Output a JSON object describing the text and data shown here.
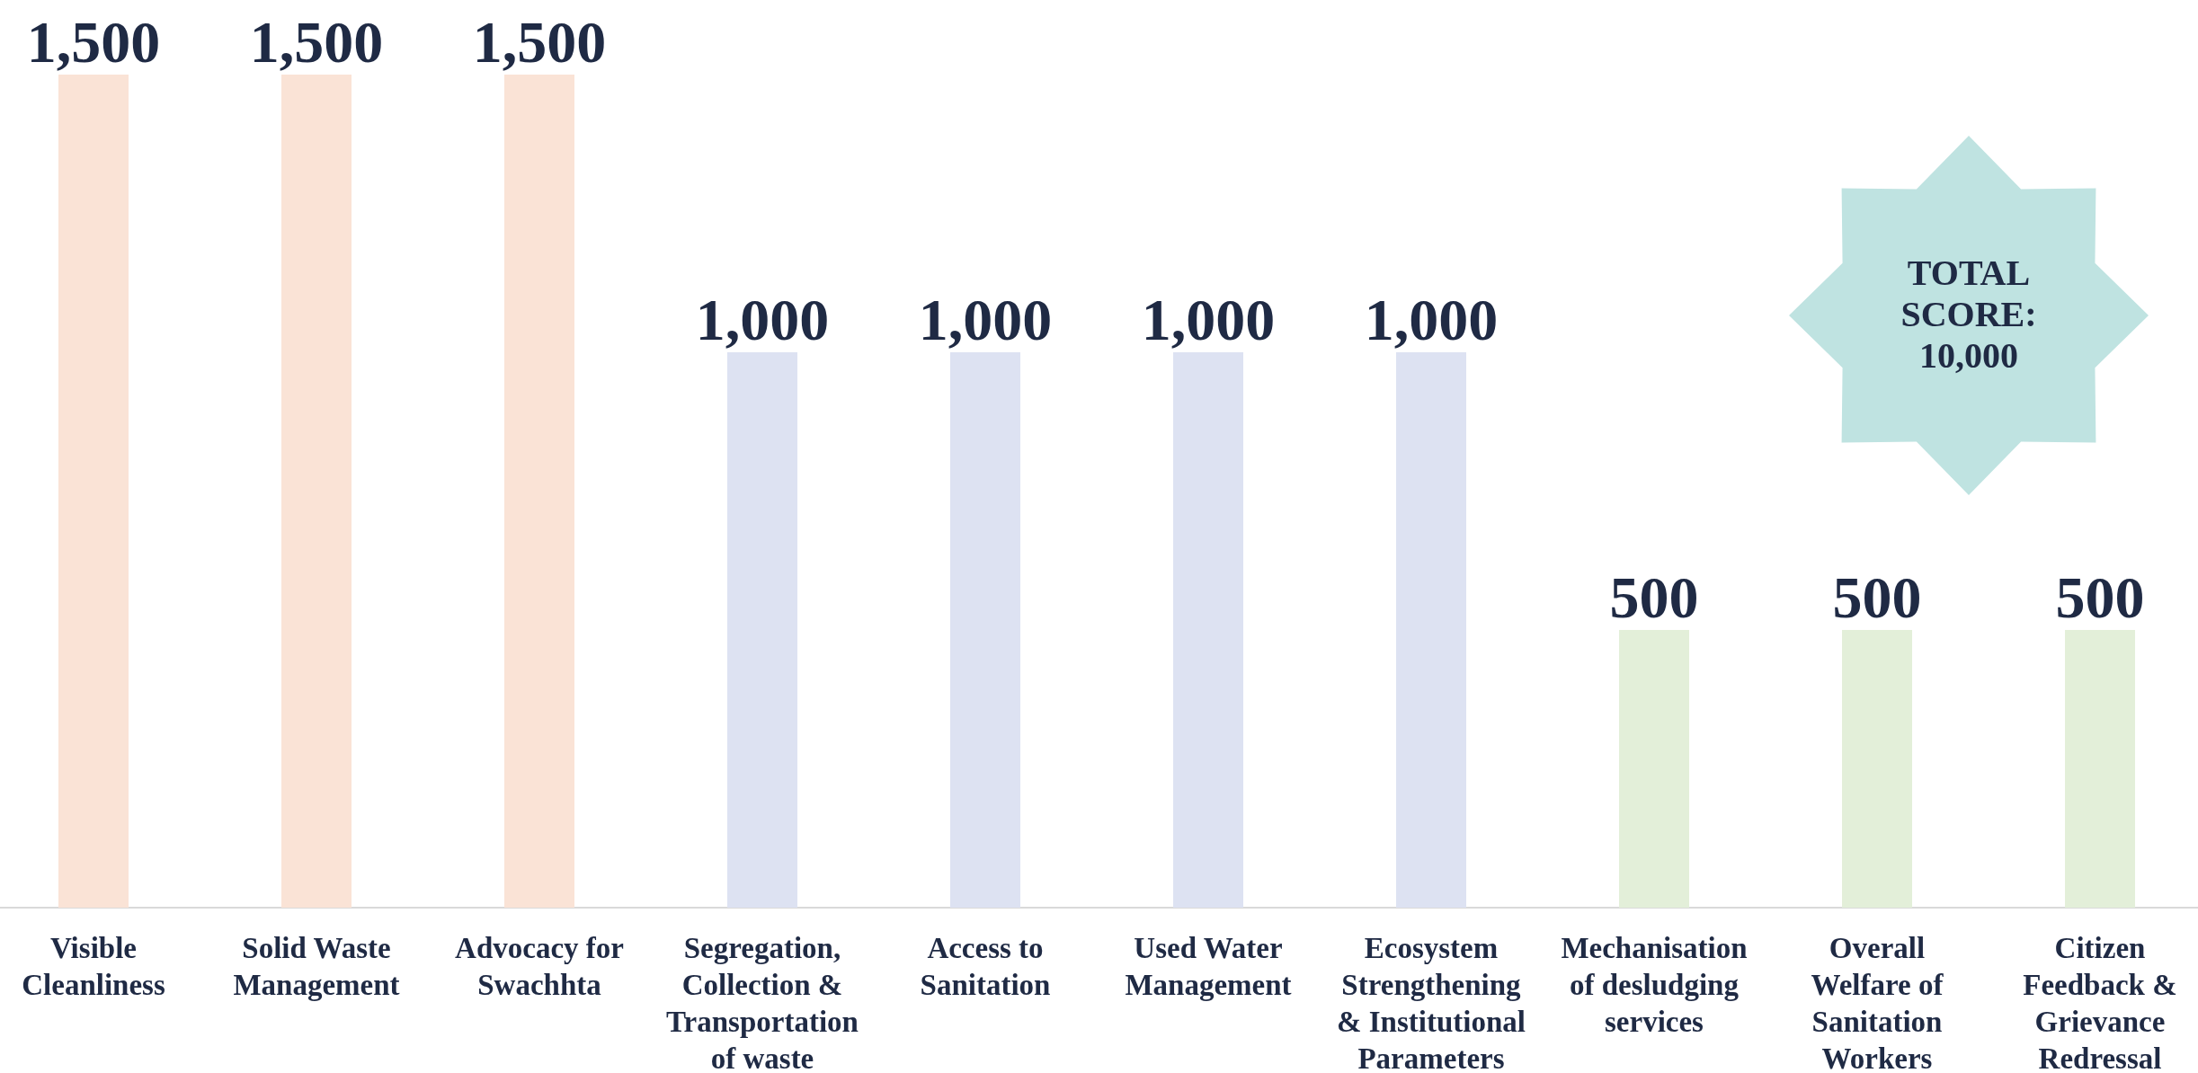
{
  "chart_data": {
    "type": "bar",
    "categories": [
      "Visible\nCleanliness",
      "Solid Waste\nManagement",
      "Advocacy for\nSwachhta",
      "Segregation,\nCollection &\nTransportation\nof waste",
      "Access to\nSanitation",
      "Used Water\nManagement",
      "Ecosystem\nStrengthening\n& Institutional\nParameters",
      "Mechanisation\nof desludging\nservices",
      "Overall\nWelfare of\nSanitation\nWorkers",
      "Citizen\nFeedback &\nGrievance\nRedressal"
    ],
    "values": [
      1500,
      1500,
      1500,
      1000,
      1000,
      1000,
      1000,
      500,
      500,
      500
    ],
    "colors": [
      "#fae3d6",
      "#fae3d6",
      "#fae3d6",
      "#dde2f2",
      "#dde2f2",
      "#dde2f2",
      "#dde2f2",
      "#e3efd9",
      "#e3efd9",
      "#e3efd9"
    ],
    "value_labels": [
      "1,500",
      "1,500",
      "1,500",
      "1,000",
      "1,000",
      "1,000",
      "1,000",
      "500",
      "500",
      "500"
    ],
    "ylim": [
      0,
      1500
    ],
    "annotations": [
      "TOTAL\nSCORE:\n10,000"
    ]
  }
}
